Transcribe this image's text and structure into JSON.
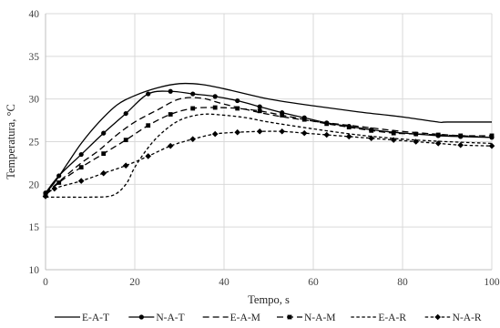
{
  "chart_data": {
    "type": "line",
    "xlabel": "Tempo, s",
    "ylabel": "Temperatura, °C",
    "xlim": [
      0,
      100
    ],
    "ylim": [
      10,
      40
    ],
    "xticks": [
      0,
      20,
      40,
      60,
      80,
      100
    ],
    "yticks": [
      10,
      15,
      20,
      25,
      30,
      35,
      40
    ],
    "grid": "horizontal",
    "legend_position": "bottom",
    "series": [
      {
        "name": "E-A-T",
        "dash": "solid",
        "marker": "none",
        "x": [
          0,
          2,
          5,
          8,
          12,
          16,
          20,
          25,
          30,
          35,
          40,
          50,
          60,
          70,
          80,
          88,
          90,
          100
        ],
        "y": [
          19.0,
          20.2,
          22.5,
          24.8,
          27.3,
          29.3,
          30.4,
          31.3,
          31.8,
          31.7,
          31.2,
          30.0,
          29.2,
          28.5,
          27.9,
          27.3,
          27.3,
          27.3
        ]
      },
      {
        "name": "N-A-T",
        "dash": "solid",
        "marker": "circle",
        "x": [
          0,
          3,
          8,
          13,
          18,
          23,
          28,
          33,
          38,
          43,
          48,
          53,
          58,
          63,
          68,
          73,
          78,
          83,
          88,
          93,
          100
        ],
        "y": [
          19.0,
          21.0,
          23.5,
          26.0,
          28.3,
          30.6,
          30.9,
          30.6,
          30.3,
          29.8,
          29.1,
          28.4,
          27.8,
          27.2,
          26.8,
          26.4,
          26.1,
          25.9,
          25.7,
          25.6,
          25.5
        ]
      },
      {
        "name": "E-A-M",
        "dash": "dash",
        "marker": "none",
        "x": [
          0,
          3,
          5,
          8,
          12,
          16,
          20,
          25,
          30,
          35,
          40,
          50,
          60,
          70,
          80,
          90,
          100
        ],
        "y": [
          18.9,
          20.3,
          21.2,
          22.5,
          24.0,
          25.8,
          27.3,
          28.7,
          30.0,
          30.1,
          29.4,
          28.2,
          27.4,
          26.8,
          26.2,
          25.8,
          25.5
        ]
      },
      {
        "name": "N-A-M",
        "dash": "dash",
        "marker": "square",
        "x": [
          0,
          3,
          8,
          13,
          18,
          23,
          28,
          33,
          38,
          43,
          48,
          53,
          58,
          63,
          68,
          73,
          78,
          83,
          88,
          93,
          100
        ],
        "y": [
          18.7,
          20.2,
          22.0,
          23.6,
          25.2,
          26.9,
          28.2,
          28.9,
          29.0,
          28.9,
          28.6,
          28.1,
          27.6,
          27.1,
          26.7,
          26.3,
          26.0,
          25.9,
          25.8,
          25.7,
          25.7
        ]
      },
      {
        "name": "E-A-R",
        "dash": "shortdash",
        "marker": "none",
        "x": [
          0,
          5,
          10,
          15,
          18,
          20,
          23,
          26,
          30,
          35,
          40,
          45,
          50,
          60,
          70,
          80,
          90,
          100
        ],
        "y": [
          18.5,
          18.5,
          18.5,
          18.7,
          20.0,
          22.0,
          24.3,
          26.0,
          27.5,
          28.2,
          28.1,
          27.8,
          27.3,
          26.5,
          25.8,
          25.3,
          25.0,
          24.8
        ]
      },
      {
        "name": "N-A-R",
        "dash": "shortdash",
        "marker": "diamond",
        "x": [
          0,
          2,
          8,
          13,
          18,
          23,
          28,
          33,
          38,
          43,
          48,
          53,
          58,
          63,
          68,
          73,
          78,
          83,
          88,
          93,
          100
        ],
        "y": [
          18.6,
          19.5,
          20.4,
          21.3,
          22.2,
          23.3,
          24.5,
          25.3,
          25.9,
          26.1,
          26.2,
          26.2,
          26.0,
          25.8,
          25.6,
          25.4,
          25.2,
          25.0,
          24.8,
          24.6,
          24.5
        ]
      }
    ]
  }
}
